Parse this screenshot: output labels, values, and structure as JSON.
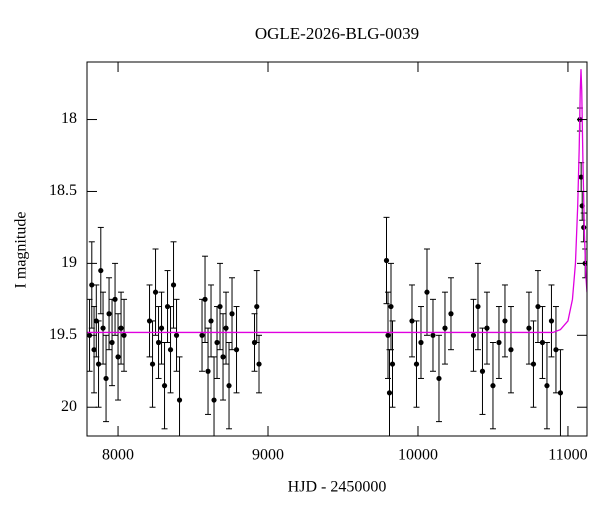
{
  "chart_data": {
    "type": "scatter",
    "title": "OGLE-2026-BLG-0039",
    "xlabel": "HJD - 2450000",
    "ylabel": "I magnitude",
    "xlim": [
      7793,
      11127
    ],
    "ylim": [
      20.2,
      17.6
    ],
    "xticks": [
      8000,
      9000,
      10000,
      11000
    ],
    "yticks": [
      18,
      18.5,
      19,
      19.5,
      20
    ],
    "series": [
      {
        "type": "errorbar",
        "color": "#000000",
        "x": [
          7810,
          7825,
          7840,
          7855,
          7870,
          7885,
          7900,
          7920,
          7940,
          7960,
          7980,
          8000,
          8020,
          8040,
          8210,
          8230,
          8250,
          8270,
          8290,
          8310,
          8330,
          8350,
          8370,
          8390,
          8410,
          8560,
          8580,
          8600,
          8620,
          8640,
          8660,
          8680,
          8700,
          8720,
          8740,
          8760,
          8790,
          8910,
          8925,
          8940,
          9790,
          9800,
          9810,
          9820,
          9830,
          9960,
          9990,
          10020,
          10060,
          10100,
          10140,
          10180,
          10220,
          10370,
          10400,
          10430,
          10460,
          10500,
          10540,
          10580,
          10620,
          10740,
          10770,
          10800,
          10830,
          10860,
          10890,
          10920,
          10950,
          11080,
          11088,
          11095,
          11105,
          11115
        ],
        "values": [
          19.5,
          19.15,
          19.6,
          19.4,
          19.7,
          19.05,
          19.45,
          19.8,
          19.35,
          19.55,
          19.25,
          19.65,
          19.45,
          19.5,
          19.4,
          19.7,
          19.2,
          19.55,
          19.45,
          19.85,
          19.3,
          19.6,
          19.15,
          19.5,
          19.95,
          19.5,
          19.25,
          19.75,
          19.4,
          19.95,
          19.55,
          19.3,
          19.65,
          19.45,
          19.85,
          19.35,
          19.6,
          19.55,
          19.3,
          19.7,
          18.98,
          19.5,
          19.9,
          19.3,
          19.7,
          19.4,
          19.7,
          19.55,
          19.2,
          19.5,
          19.8,
          19.45,
          19.35,
          19.5,
          19.3,
          19.75,
          19.45,
          19.85,
          19.55,
          19.4,
          19.6,
          19.45,
          19.7,
          19.3,
          19.55,
          19.85,
          19.4,
          19.6,
          19.9,
          18.0,
          18.4,
          18.6,
          18.75,
          19.0
        ],
        "errors": [
          0.25,
          0.3,
          0.3,
          0.25,
          0.3,
          0.3,
          0.25,
          0.3,
          0.25,
          0.3,
          0.25,
          0.3,
          0.25,
          0.25,
          0.25,
          0.3,
          0.3,
          0.25,
          0.25,
          0.3,
          0.25,
          0.3,
          0.3,
          0.25,
          0.3,
          0.25,
          0.3,
          0.3,
          0.25,
          0.3,
          0.25,
          0.3,
          0.3,
          0.25,
          0.3,
          0.25,
          0.3,
          0.2,
          0.25,
          0.2,
          0.3,
          0.3,
          0.3,
          0.3,
          0.3,
          0.25,
          0.3,
          0.25,
          0.3,
          0.25,
          0.3,
          0.25,
          0.25,
          0.25,
          0.3,
          0.3,
          0.25,
          0.3,
          0.25,
          0.25,
          0.3,
          0.25,
          0.3,
          0.25,
          0.25,
          0.3,
          0.25,
          0.3,
          0.3,
          0.08,
          0.1,
          0.1,
          0.1,
          0.1
        ]
      },
      {
        "type": "line",
        "color": "#e000e0",
        "x": [
          7793,
          10900,
          10950,
          11000,
          11030,
          11050,
          11065,
          11075,
          11082,
          11087,
          11092,
          11100,
          11110,
          11120,
          11127
        ],
        "values": [
          19.48,
          19.48,
          19.46,
          19.4,
          19.25,
          19.0,
          18.6,
          18.2,
          17.8,
          17.65,
          17.8,
          18.3,
          18.8,
          19.1,
          19.2
        ]
      }
    ]
  }
}
